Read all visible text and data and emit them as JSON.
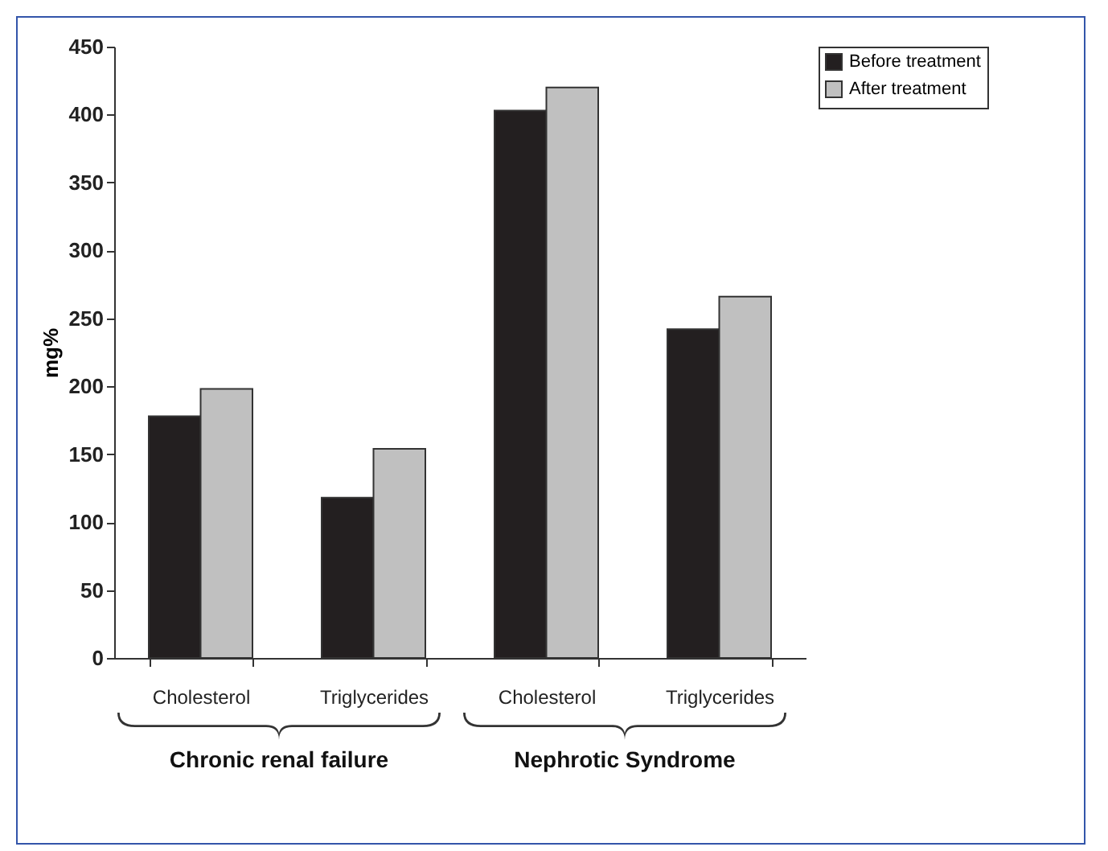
{
  "chart_data": {
    "type": "bar",
    "ylabel": "mg%",
    "categories": [
      "Cholesterol",
      "Triglycerides",
      "Cholesterol",
      "Triglycerides"
    ],
    "series": [
      {
        "name": "Before treatment",
        "color": "#231f20",
        "values": [
          178,
          118,
          403,
          242
        ]
      },
      {
        "name": "After treatment",
        "color": "#c0c0c0",
        "values": [
          198,
          154,
          420,
          266
        ]
      }
    ],
    "ylim": [
      0,
      450
    ],
    "yticks": [
      0,
      50,
      100,
      150,
      200,
      250,
      300,
      350,
      400,
      450
    ],
    "grid": false,
    "legend": "right",
    "annotations": [
      "Chronic renal failure",
      "Nephrotic Syndrome"
    ]
  }
}
